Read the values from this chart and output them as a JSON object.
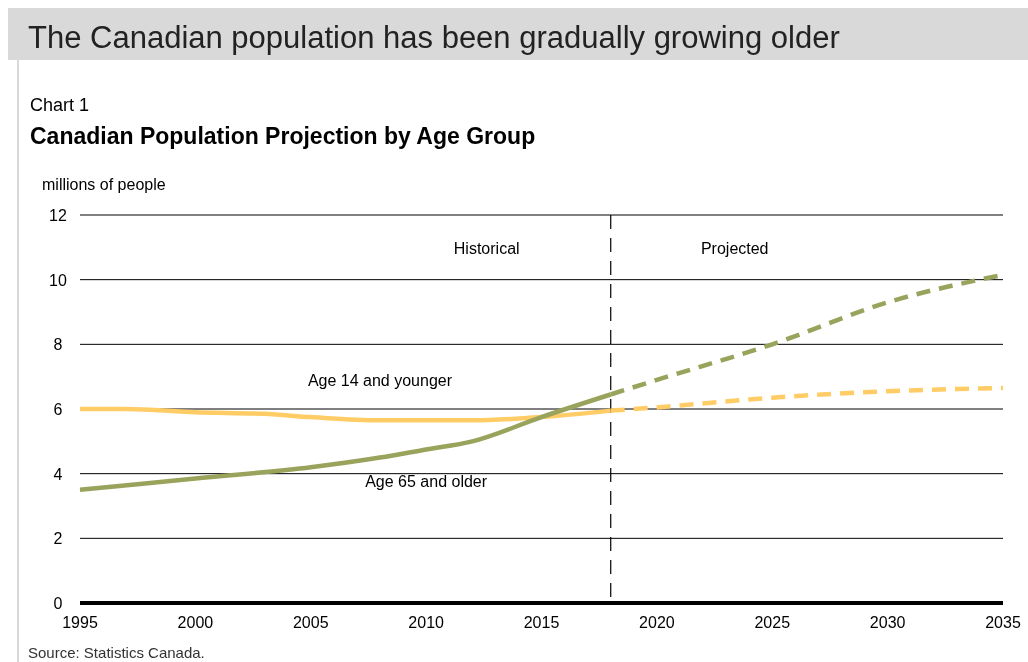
{
  "chart_data": {
    "type": "line",
    "title": "Canadian Population Projection by Age Group",
    "subtitle": "Chart 1",
    "ylabel": "millions of people",
    "annotations": [
      "The Canadian population has been gradually growing older",
      "Source: Statistics Canada.",
      "Historical",
      "Projected"
    ],
    "series": [
      {
        "name": "Age 14 and younger",
        "color": "#ffcc66",
        "line_style": "solid",
        "x": [
          1995,
          1997,
          2000,
          2003,
          2005,
          2008,
          2010,
          2012,
          2015,
          2018
        ],
        "values": [
          6.0,
          6.0,
          5.9,
          5.85,
          5.75,
          5.65,
          5.65,
          5.65,
          5.75,
          5.95
        ]
      },
      {
        "color": "#ffcc66",
        "line_style": "dashed",
        "x": [
          2018,
          2020,
          2025,
          2030,
          2035
        ],
        "values": [
          5.95,
          6.05,
          6.35,
          6.55,
          6.65
        ]
      },
      {
        "name": "Age 65 and older",
        "color": "#9aa35c",
        "line_style": "solid",
        "x": [
          1995,
          2000,
          2005,
          2008,
          2010,
          2012,
          2015,
          2018
        ],
        "values": [
          3.5,
          3.85,
          4.2,
          4.5,
          4.75,
          5.0,
          5.75,
          6.45
        ]
      },
      {
        "color": "#9aa35c",
        "line_style": "dashed",
        "x": [
          2018,
          2020,
          2025,
          2030,
          2035
        ],
        "values": [
          6.45,
          6.9,
          8.0,
          9.3,
          10.15
        ]
      }
    ],
    "xlim": [
      1995,
      2035
    ],
    "xticks": [
      1995,
      2000,
      2005,
      2010,
      2015,
      2020,
      2025,
      2030,
      2035
    ],
    "ylim": [
      0,
      12
    ],
    "yticks": [
      0,
      2,
      4,
      6,
      8,
      10,
      12
    ],
    "grid": "y",
    "ref_lines": [
      {
        "axis": "x",
        "value": 2018,
        "color": "#000000",
        "line_style": "dashed"
      }
    ]
  }
}
